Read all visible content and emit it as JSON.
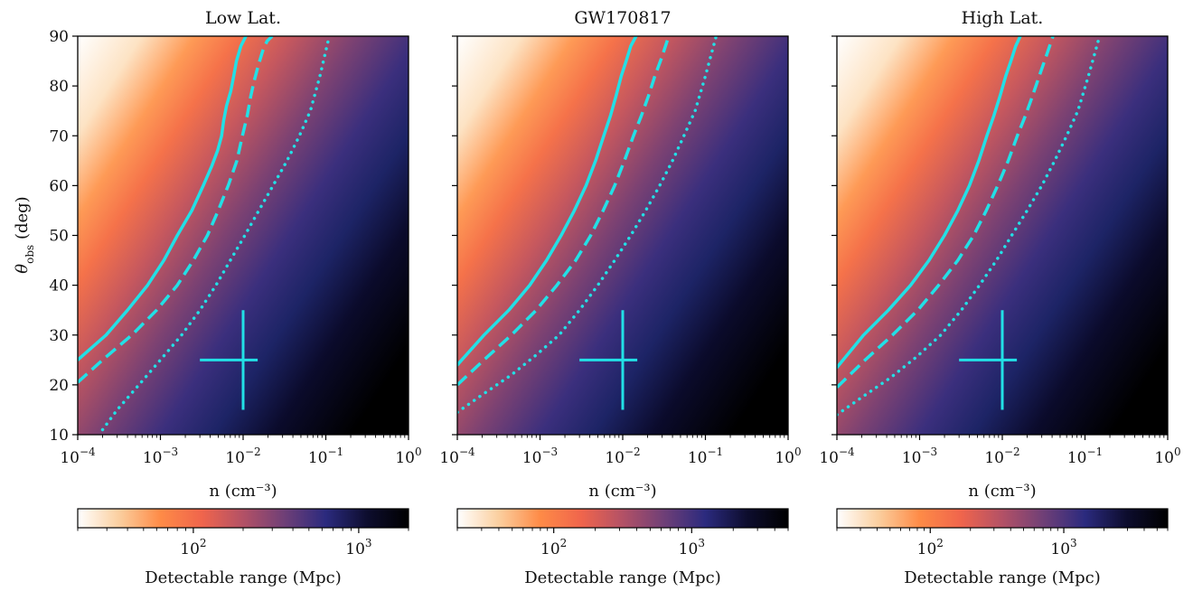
{
  "chart_data": [
    {
      "type": "heatmap",
      "title": "Low Lat.",
      "xlabel": "n (cm⁻³)",
      "ylabel_main": "θ",
      "ylabel_sub": "obs",
      "ylabel_suffix": " (deg)",
      "xscale": "log",
      "xlim": [
        0.0001,
        1
      ],
      "ylim": [
        10,
        90
      ],
      "x_ticks": [
        {
          "base": "10",
          "exp": "−4",
          "value": 0.0001
        },
        {
          "base": "10",
          "exp": "−3",
          "value": 0.001
        },
        {
          "base": "10",
          "exp": "−2",
          "value": 0.01
        },
        {
          "base": "10",
          "exp": "−1",
          "value": 0.1
        },
        {
          "base": "10",
          "exp": "0",
          "value": 1
        }
      ],
      "y_ticks": [
        "10",
        "20",
        "30",
        "40",
        "50",
        "60",
        "70",
        "80",
        "90"
      ],
      "contours": [
        {
          "style": "solid",
          "color": "#22e0e6",
          "x": [
            0.0001,
            0.00022,
            0.0004,
            0.0007,
            0.0011,
            0.0016,
            0.0024,
            0.0033,
            0.0042,
            0.0049,
            0.0055,
            0.0058,
            0.0063,
            0.0071,
            0.0077,
            0.0083,
            0.0094,
            0.0108
          ],
          "y": [
            25,
            30,
            35,
            40,
            45,
            50,
            55,
            60,
            64,
            67,
            70,
            73,
            76,
            79,
            82,
            85,
            88,
            90
          ]
        },
        {
          "style": "dashed",
          "color": "#22e0e6",
          "x": [
            0.0001,
            0.0002,
            0.00045,
            0.0009,
            0.0016,
            0.0025,
            0.0037,
            0.005,
            0.0066,
            0.0084,
            0.0098,
            0.0112,
            0.0124,
            0.0136,
            0.0152,
            0.0172,
            0.0195,
            0.0225
          ],
          "y": [
            20.5,
            25,
            30,
            35,
            40,
            45,
            50,
            55,
            60,
            65,
            70,
            74,
            78,
            81,
            84,
            87,
            89,
            90
          ]
        },
        {
          "style": "dotted",
          "color": "#22e0e6",
          "x": [
            0.0002,
            0.0003,
            0.00055,
            0.001,
            0.0018,
            0.003,
            0.0047,
            0.007,
            0.0105,
            0.0155,
            0.023,
            0.034,
            0.048,
            0.065,
            0.085,
            0.11
          ],
          "y": [
            11,
            15,
            20,
            25,
            30,
            35,
            40,
            45,
            50,
            55,
            60,
            65,
            70,
            75,
            82,
            90
          ]
        }
      ],
      "marker": {
        "x": 0.01,
        "y": 25,
        "x_range": [
          0.003,
          0.015
        ],
        "y_range": [
          15,
          35
        ],
        "color": "#22e0e6"
      },
      "colorbar": {
        "label": "Detectable range (Mpc)",
        "scale": "log",
        "range": [
          20,
          2000
        ],
        "cmap": [
          "#ffffff",
          "#fbcf9f",
          "#fe8b47",
          "#f0654c",
          "#b35166",
          "#6f3f77",
          "#2b2a7e",
          "#0d0d2e",
          "#000000"
        ],
        "ticks": [
          {
            "base": "10",
            "exp": "2",
            "value": 100
          },
          {
            "base": "10",
            "exp": "3",
            "value": 1000
          }
        ]
      }
    },
    {
      "type": "heatmap",
      "title": "GW170817",
      "xlabel": "n (cm⁻³)",
      "xscale": "log",
      "xlim": [
        0.0001,
        1
      ],
      "ylim": [
        10,
        90
      ],
      "x_ticks": [
        {
          "base": "10",
          "exp": "−4",
          "value": 0.0001
        },
        {
          "base": "10",
          "exp": "−3",
          "value": 0.001
        },
        {
          "base": "10",
          "exp": "−2",
          "value": 0.01
        },
        {
          "base": "10",
          "exp": "−1",
          "value": 0.1
        },
        {
          "base": "10",
          "exp": "0",
          "value": 1
        }
      ],
      "contours": [
        {
          "style": "solid",
          "color": "#22e0e6",
          "x": [
            0.0001,
            0.00021,
            0.00042,
            0.00075,
            0.0012,
            0.0018,
            0.0026,
            0.0036,
            0.0047,
            0.0059,
            0.0071,
            0.0083,
            0.0096,
            0.011,
            0.0125,
            0.0145
          ],
          "y": [
            24,
            30,
            35,
            40,
            45,
            50,
            55,
            60,
            65,
            70,
            74,
            78,
            82,
            85,
            88,
            90
          ]
        },
        {
          "style": "dashed",
          "color": "#22e0e6",
          "x": [
            0.0001,
            0.00021,
            0.00045,
            0.0009,
            0.0016,
            0.0027,
            0.0041,
            0.0058,
            0.008,
            0.0105,
            0.0135,
            0.0168,
            0.0205,
            0.0245,
            0.03,
            0.036
          ],
          "y": [
            20,
            25,
            30,
            35,
            40,
            45,
            50,
            55,
            60,
            65,
            70,
            74,
            78,
            82,
            86,
            90
          ]
        },
        {
          "style": "dotted",
          "color": "#22e0e6",
          "x": [
            0.0001,
            0.0002,
            0.00045,
            0.0009,
            0.0017,
            0.003,
            0.005,
            0.008,
            0.0125,
            0.019,
            0.028,
            0.04,
            0.055,
            0.075,
            0.1,
            0.135
          ],
          "y": [
            14.5,
            18,
            22,
            26,
            30,
            35,
            40,
            45,
            50,
            55,
            60,
            65,
            70,
            75,
            82,
            90
          ]
        }
      ],
      "marker": {
        "x": 0.01,
        "y": 25,
        "x_range": [
          0.003,
          0.015
        ],
        "y_range": [
          15,
          35
        ],
        "color": "#22e0e6"
      },
      "colorbar": {
        "label": "Detectable range (Mpc)",
        "scale": "log",
        "range": [
          20,
          5000
        ],
        "cmap": [
          "#ffffff",
          "#fbcf9f",
          "#fe8b47",
          "#f0654c",
          "#b35166",
          "#6f3f77",
          "#2b2a7e",
          "#0d0d2e",
          "#000000"
        ],
        "ticks": [
          {
            "base": "10",
            "exp": "2",
            "value": 100
          },
          {
            "base": "10",
            "exp": "3",
            "value": 1000
          }
        ]
      }
    },
    {
      "type": "heatmap",
      "title": "High Lat.",
      "xlabel": "n (cm⁻³)",
      "xscale": "log",
      "xlim": [
        0.0001,
        1
      ],
      "ylim": [
        10,
        90
      ],
      "x_ticks": [
        {
          "base": "10",
          "exp": "−4",
          "value": 0.0001
        },
        {
          "base": "10",
          "exp": "−3",
          "value": 0.001
        },
        {
          "base": "10",
          "exp": "−2",
          "value": 0.01
        },
        {
          "base": "10",
          "exp": "−1",
          "value": 0.1
        },
        {
          "base": "10",
          "exp": "0",
          "value": 1
        }
      ],
      "contours": [
        {
          "style": "solid",
          "color": "#22e0e6",
          "x": [
            0.0001,
            0.00021,
            0.00042,
            0.00078,
            0.0013,
            0.002,
            0.0029,
            0.004,
            0.0052,
            0.0065,
            0.0079,
            0.0094,
            0.011,
            0.0127,
            0.0145,
            0.0165
          ],
          "y": [
            23.5,
            30,
            35,
            40,
            45,
            50,
            55,
            60,
            65,
            70,
            74,
            78,
            82,
            85,
            88,
            90
          ]
        },
        {
          "style": "dashed",
          "color": "#22e0e6",
          "x": [
            0.0001,
            0.00022,
            0.00047,
            0.00095,
            0.0017,
            0.0029,
            0.0045,
            0.0064,
            0.0088,
            0.0118,
            0.0152,
            0.019,
            0.0232,
            0.028,
            0.034,
            0.041
          ],
          "y": [
            19.5,
            25,
            30,
            35,
            40,
            45,
            50,
            55,
            60,
            65,
            70,
            74,
            78,
            82,
            86,
            90
          ]
        },
        {
          "style": "dotted",
          "color": "#22e0e6",
          "x": [
            0.0001,
            0.0002,
            0.00045,
            0.0009,
            0.0018,
            0.0032,
            0.0053,
            0.0085,
            0.013,
            0.02,
            0.03,
            0.043,
            0.06,
            0.082,
            0.11,
            0.15
          ],
          "y": [
            14,
            17.5,
            21.5,
            25.5,
            30,
            35,
            40,
            45,
            50,
            55,
            60,
            65,
            70,
            75,
            82,
            90
          ]
        }
      ],
      "marker": {
        "x": 0.01,
        "y": 25,
        "x_range": [
          0.003,
          0.015
        ],
        "y_range": [
          15,
          35
        ],
        "color": "#22e0e6"
      },
      "colorbar": {
        "label": "Detectable range (Mpc)",
        "scale": "log",
        "range": [
          20,
          6000
        ],
        "cmap": [
          "#ffffff",
          "#fbcf9f",
          "#fe8b47",
          "#f0654c",
          "#b35166",
          "#6f3f77",
          "#2b2a7e",
          "#0d0d2e",
          "#000000"
        ],
        "ticks": [
          {
            "base": "10",
            "exp": "2",
            "value": 100
          },
          {
            "base": "10",
            "exp": "3",
            "value": 1000
          }
        ]
      }
    }
  ]
}
